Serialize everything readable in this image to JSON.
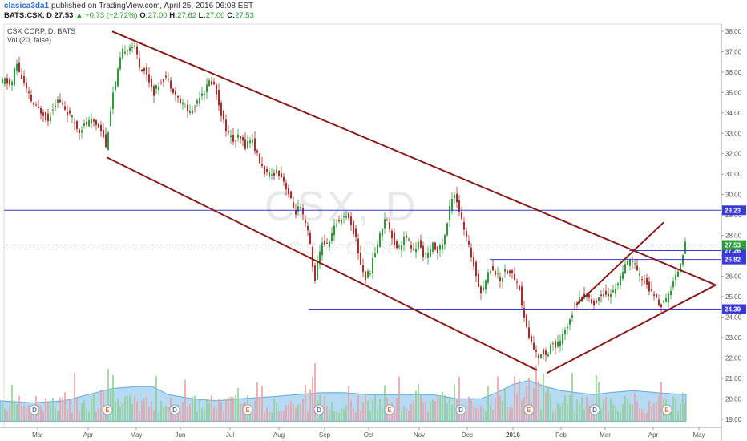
{
  "header": {
    "author": "clasica3da1",
    "published": "published on TradingView.com, April 25, 2016 06:08 EST",
    "symbol": "BATS:CSX, D",
    "last": "27.53",
    "change": "▲ +0.73 (+2.72%)",
    "o_label": "O:",
    "o": "27.00",
    "h_label": "H:",
    "h": "27.62",
    "l_label": "L:",
    "l": "27.00",
    "c_label": "C:",
    "c": "27.53"
  },
  "legend": {
    "series": "CSX CORP, D, BATS",
    "volume": "Vol (20, false)"
  },
  "watermark": {
    "symbol": "CSX, D",
    "name": "CSX CORP"
  },
  "colors": {
    "up": "#2e9b3a",
    "down": "#b02a2a",
    "trend": "#8b1a1a",
    "hline": "#3a3ad6",
    "vol_up": "#8fd08f",
    "vol_down": "#e8a0a0",
    "vol_area": "#9fcdf0"
  },
  "chart_data": {
    "type": "candlestick",
    "title": "CSX CORP, D, BATS",
    "ylim": [
      18.6,
      38.35
    ],
    "y_ticks": [
      "19.00",
      "20.00",
      "21.00",
      "22.00",
      "23.00",
      "24.00",
      "25.00",
      "26.00",
      "27.00",
      "28.00",
      "29.00",
      "30.00",
      "31.00",
      "32.00",
      "33.00",
      "34.00",
      "35.00",
      "36.00",
      "37.00",
      "38.00"
    ],
    "x_ticks": [
      "Mar",
      "Apr",
      "May",
      "Jun",
      "Jul",
      "Aug",
      "Sep",
      "Oct",
      "Nov",
      "Dec",
      "2016",
      "Feb",
      "Mar",
      "Apr",
      "May"
    ],
    "price_path": [
      [
        0,
        35.4
      ],
      [
        6,
        35.6
      ],
      [
        14,
        35.3
      ],
      [
        20,
        36.5
      ],
      [
        26,
        35.8
      ],
      [
        34,
        35.0
      ],
      [
        40,
        34.5
      ],
      [
        46,
        34.2
      ],
      [
        54,
        34.0
      ],
      [
        60,
        33.6
      ],
      [
        66,
        34.3
      ],
      [
        72,
        34.6
      ],
      [
        78,
        34.4
      ],
      [
        84,
        34.0
      ],
      [
        92,
        33.6
      ],
      [
        98,
        33.1
      ],
      [
        104,
        33.4
      ],
      [
        110,
        33.5
      ],
      [
        116,
        33.6
      ],
      [
        122,
        33.4
      ],
      [
        128,
        33.1
      ],
      [
        132,
        32.3
      ],
      [
        136,
        33.5
      ],
      [
        140,
        34.8
      ],
      [
        146,
        35.8
      ],
      [
        150,
        36.6
      ],
      [
        154,
        37.1
      ],
      [
        160,
        37.2
      ],
      [
        166,
        37.3
      ],
      [
        170,
        37.0
      ],
      [
        174,
        36.3
      ],
      [
        180,
        36.1
      ],
      [
        186,
        35.6
      ],
      [
        192,
        35.0
      ],
      [
        198,
        35.4
      ],
      [
        206,
        35.8
      ],
      [
        214,
        35.3
      ],
      [
        222,
        34.7
      ],
      [
        230,
        34.3
      ],
      [
        238,
        34.0
      ],
      [
        244,
        34.4
      ],
      [
        250,
        35.0
      ],
      [
        256,
        35.1
      ],
      [
        262,
        35.6
      ],
      [
        268,
        35.3
      ],
      [
        274,
        34.3
      ],
      [
        280,
        33.4
      ],
      [
        286,
        32.9
      ],
      [
        292,
        32.6
      ],
      [
        298,
        32.8
      ],
      [
        306,
        32.4
      ],
      [
        314,
        32.8
      ],
      [
        320,
        32.0
      ],
      [
        326,
        31.4
      ],
      [
        332,
        31.0
      ],
      [
        338,
        30.9
      ],
      [
        344,
        31.2
      ],
      [
        350,
        31.0
      ],
      [
        356,
        30.5
      ],
      [
        362,
        29.8
      ],
      [
        368,
        29.1
      ],
      [
        374,
        29.4
      ],
      [
        380,
        28.6
      ],
      [
        386,
        27.9
      ],
      [
        392,
        25.7
      ],
      [
        396,
        26.6
      ],
      [
        402,
        27.7
      ],
      [
        408,
        27.5
      ],
      [
        414,
        28.1
      ],
      [
        420,
        28.6
      ],
      [
        426,
        28.9
      ],
      [
        432,
        29.0
      ],
      [
        438,
        28.6
      ],
      [
        444,
        27.8
      ],
      [
        450,
        26.6
      ],
      [
        456,
        25.9
      ],
      [
        462,
        26.3
      ],
      [
        468,
        27.2
      ],
      [
        474,
        28.0
      ],
      [
        480,
        28.9
      ],
      [
        486,
        28.4
      ],
      [
        492,
        27.6
      ],
      [
        498,
        27.4
      ],
      [
        504,
        27.9
      ],
      [
        510,
        27.7
      ],
      [
        516,
        27.2
      ],
      [
        522,
        27.6
      ],
      [
        528,
        27.1
      ],
      [
        534,
        27.0
      ],
      [
        540,
        27.5
      ],
      [
        546,
        27.3
      ],
      [
        550,
        27.4
      ],
      [
        556,
        28.1
      ],
      [
        562,
        29.6
      ],
      [
        566,
        30.2
      ],
      [
        570,
        29.7
      ],
      [
        576,
        28.7
      ],
      [
        582,
        27.8
      ],
      [
        588,
        27.0
      ],
      [
        594,
        26.1
      ],
      [
        600,
        25.2
      ],
      [
        606,
        25.8
      ],
      [
        612,
        26.4
      ],
      [
        618,
        26.2
      ],
      [
        624,
        25.8
      ],
      [
        630,
        26.3
      ],
      [
        636,
        26.2
      ],
      [
        642,
        25.9
      ],
      [
        648,
        25.4
      ],
      [
        652,
        24.3
      ],
      [
        656,
        23.7
      ],
      [
        660,
        23.0
      ],
      [
        666,
        22.5
      ],
      [
        672,
        21.9
      ],
      [
        676,
        22.4
      ],
      [
        682,
        22.1
      ],
      [
        688,
        22.8
      ],
      [
        694,
        22.5
      ],
      [
        700,
        22.9
      ],
      [
        706,
        23.4
      ],
      [
        712,
        24.1
      ],
      [
        718,
        24.6
      ],
      [
        724,
        24.9
      ],
      [
        730,
        25.1
      ],
      [
        736,
        24.9
      ],
      [
        742,
        24.6
      ],
      [
        748,
        25.0
      ],
      [
        754,
        25.3
      ],
      [
        760,
        25.0
      ],
      [
        766,
        25.3
      ],
      [
        772,
        25.8
      ],
      [
        778,
        26.3
      ],
      [
        784,
        26.7
      ],
      [
        790,
        26.8
      ],
      [
        794,
        26.2
      ],
      [
        800,
        25.9
      ],
      [
        806,
        25.7
      ],
      [
        812,
        25.2
      ],
      [
        818,
        24.9
      ],
      [
        824,
        24.6
      ],
      [
        830,
        24.7
      ],
      [
        836,
        25.3
      ],
      [
        840,
        25.7
      ],
      [
        846,
        26.3
      ],
      [
        852,
        27.2
      ],
      [
        855,
        27.53
      ]
    ],
    "trendlines": [
      {
        "from": [
          140,
          37.99
        ],
        "to": [
          893,
          25.57
        ]
      },
      {
        "from": [
          133,
          31.83
        ],
        "to": [
          670,
          21.4
        ]
      },
      {
        "from": [
          682,
          21.25
        ],
        "to": [
          893,
          25.57
        ]
      },
      {
        "from": [
          720,
          24.64
        ],
        "to": [
          828,
          28.64
        ]
      }
    ],
    "hlines": [
      {
        "y": 29.23,
        "label": "29.23",
        "x_from": 5
      },
      {
        "y": 27.26,
        "label": "27.26",
        "x_from": 785
      },
      {
        "y": 26.82,
        "label": "26.82",
        "x_from": 611
      },
      {
        "y": 24.39,
        "label": "24.39",
        "x_from": 385
      }
    ],
    "last_price": {
      "y": 27.53,
      "label": "27.53"
    },
    "events": [
      {
        "x": 43,
        "type": "D"
      },
      {
        "x": 134,
        "type": "E"
      },
      {
        "x": 218,
        "type": "D"
      },
      {
        "x": 309,
        "type": "E"
      },
      {
        "x": 398,
        "type": "D"
      },
      {
        "x": 486,
        "type": "E"
      },
      {
        "x": 575,
        "type": "D"
      },
      {
        "x": 660,
        "type": "E"
      },
      {
        "x": 742,
        "type": "D"
      },
      {
        "x": 832,
        "type": "E"
      }
    ],
    "volume_area": [
      [
        0,
        19.9
      ],
      [
        40,
        19.8
      ],
      [
        80,
        19.9
      ],
      [
        120,
        20.3
      ],
      [
        140,
        20.5
      ],
      [
        170,
        20.6
      ],
      [
        190,
        20.6
      ],
      [
        210,
        20.2
      ],
      [
        240,
        20.0
      ],
      [
        270,
        19.9
      ],
      [
        300,
        20.0
      ],
      [
        340,
        20.1
      ],
      [
        370,
        20.2
      ],
      [
        400,
        20.3
      ],
      [
        430,
        20.3
      ],
      [
        460,
        20.2
      ],
      [
        500,
        20.2
      ],
      [
        540,
        20.2
      ],
      [
        570,
        20.0
      ],
      [
        600,
        20.0
      ],
      [
        620,
        20.3
      ],
      [
        640,
        20.7
      ],
      [
        660,
        20.9
      ],
      [
        680,
        20.6
      ],
      [
        700,
        20.4
      ],
      [
        720,
        20.3
      ],
      [
        740,
        20.2
      ],
      [
        760,
        20.3
      ],
      [
        790,
        20.4
      ],
      [
        820,
        20.3
      ],
      [
        856,
        20.2
      ]
    ]
  }
}
